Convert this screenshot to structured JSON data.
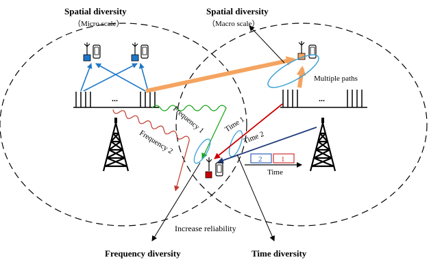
{
  "labels": {
    "spatial_micro_title": "Spatial diversity",
    "spatial_micro_sub": "（Micro scale）",
    "spatial_macro_title": "Spatial diversity",
    "spatial_macro_sub": "（Macro scale）",
    "multiple_paths": "Multiple paths",
    "frequency_1": "Frequency 1",
    "frequency_2": "Frequency 2",
    "time_1": "Time 1",
    "time_2": "Time 2",
    "time_axis": "Time",
    "slot_2": "2",
    "slot_1": "1",
    "increase_reliability": "Increase reliability",
    "frequency_diversity": "Frequency diversity",
    "time_diversity": "Time diversity",
    "ellipsis_left": "...",
    "ellipsis_right": "..."
  },
  "colors": {
    "blue_arrows": "#1f77c8",
    "orange": "#f4a460",
    "red": "#cc0000",
    "navy": "#1f3a7a",
    "green": "#1aa51a",
    "wave_red": "#c0392b",
    "ellipse_blue": "#3aa0d8",
    "slot_blue": "#2f5fb3",
    "slot_red": "#d03030"
  }
}
